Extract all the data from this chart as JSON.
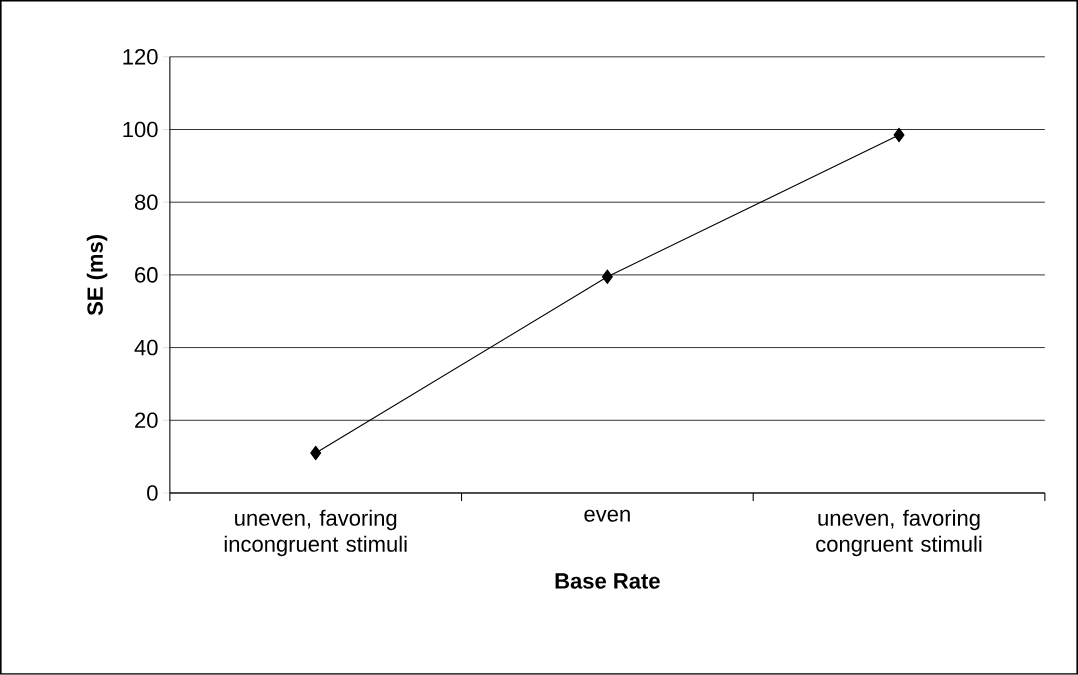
{
  "chart_data": {
    "type": "line",
    "xlabel": "Base Rate",
    "ylabel": "SE (ms)",
    "categories": [
      "uneven, favoring incongruent stimuli",
      "even",
      "uneven, favoring congruent stimuli"
    ],
    "values": [
      11,
      59.5,
      98.5
    ],
    "color": "#000000",
    "marker": "diamond",
    "line_style": "solid",
    "ylim": [
      0,
      120
    ],
    "yticks": [
      0,
      20,
      40,
      60,
      80,
      100,
      120
    ],
    "grid": "y"
  }
}
